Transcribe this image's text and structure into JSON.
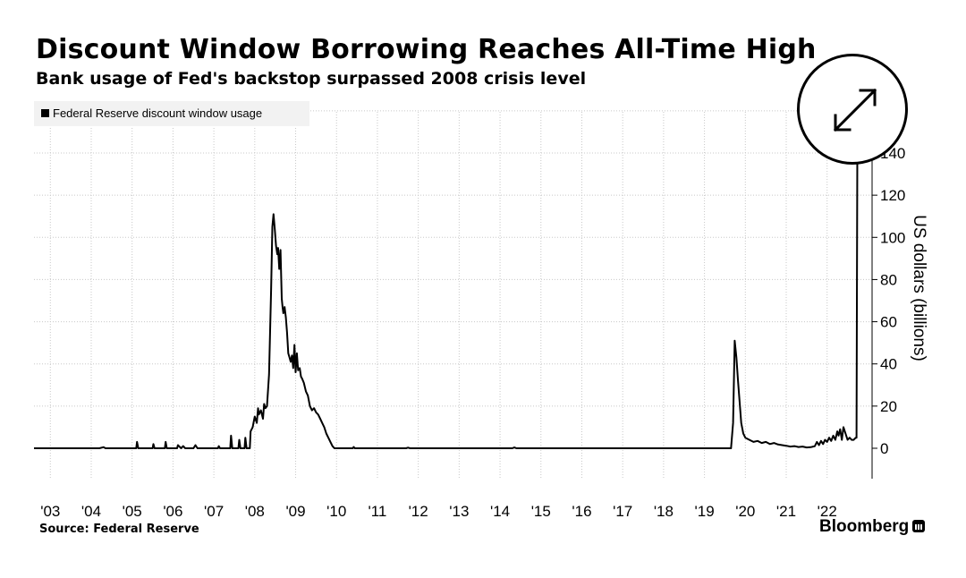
{
  "header": {
    "title": "Discount Window Borrowing Reaches All-Time High",
    "subtitle": "Bank usage of Fed's backstop surpassed 2008 crisis level"
  },
  "legend": {
    "label": "Federal Reserve discount window usage"
  },
  "footer": {
    "source": "Source: Federal Reserve",
    "brand": "Bloomberg"
  },
  "controls": {
    "expand_icon": "expand-arrows-icon"
  },
  "colors": {
    "line": "#000000",
    "grid": "#c8c8c8",
    "legend_bg": "#f2f2f2"
  },
  "chart_data": {
    "type": "line",
    "title": "Discount Window Borrowing Reaches All-Time High",
    "subtitle": "Bank usage of Fed's backstop surpassed 2008 crisis level",
    "ylabel": "US dollars (billions)",
    "ylim": [
      -15,
      140
    ],
    "xlim": [
      2002.6,
      2023.1
    ],
    "y_ticks": [
      0,
      20,
      40,
      60,
      80,
      100,
      120,
      140
    ],
    "y_tick_labels": [
      "0",
      "20",
      "40",
      "60",
      "80",
      "100",
      "120",
      "140"
    ],
    "x_ticks": [
      2003,
      2004,
      2005,
      2006,
      2007,
      2008,
      2009,
      2010,
      2011,
      2012,
      2013,
      2014,
      2015,
      2016,
      2017,
      2018,
      2019,
      2020,
      2021,
      2022
    ],
    "x_tick_labels": [
      "'03",
      "'04",
      "'05",
      "'06",
      "'07",
      "'08",
      "'09",
      "'10",
      "'11",
      "'12",
      "'13",
      "'14",
      "'15",
      "'16",
      "'17",
      "'18",
      "'19",
      "'20",
      "'21",
      "'22"
    ],
    "grid": true,
    "legend_position": "top-left",
    "series": [
      {
        "name": "Federal Reserve discount window usage",
        "points": [
          [
            2002.6,
            0
          ],
          [
            2004.2,
            0
          ],
          [
            2004.3,
            0.5
          ],
          [
            2004.35,
            0
          ],
          [
            2005.1,
            0
          ],
          [
            2005.12,
            3
          ],
          [
            2005.15,
            0
          ],
          [
            2005.5,
            0
          ],
          [
            2005.52,
            2
          ],
          [
            2005.55,
            0
          ],
          [
            2005.8,
            0
          ],
          [
            2005.82,
            3
          ],
          [
            2005.85,
            0
          ],
          [
            2006.1,
            0
          ],
          [
            2006.12,
            1.5
          ],
          [
            2006.2,
            0
          ],
          [
            2006.25,
            1
          ],
          [
            2006.3,
            0
          ],
          [
            2006.5,
            0
          ],
          [
            2006.55,
            1.5
          ],
          [
            2006.6,
            0
          ],
          [
            2007.1,
            0
          ],
          [
            2007.12,
            1
          ],
          [
            2007.15,
            0
          ],
          [
            2007.4,
            0
          ],
          [
            2007.42,
            6
          ],
          [
            2007.45,
            0
          ],
          [
            2007.6,
            0
          ],
          [
            2007.62,
            4
          ],
          [
            2007.65,
            0
          ],
          [
            2007.75,
            0
          ],
          [
            2007.77,
            5
          ],
          [
            2007.8,
            0
          ],
          [
            2007.88,
            0
          ],
          [
            2007.9,
            8
          ],
          [
            2007.95,
            10
          ],
          [
            2008.0,
            15
          ],
          [
            2008.05,
            12
          ],
          [
            2008.08,
            19
          ],
          [
            2008.1,
            16
          ],
          [
            2008.15,
            18
          ],
          [
            2008.2,
            14
          ],
          [
            2008.23,
            21
          ],
          [
            2008.26,
            19
          ],
          [
            2008.3,
            20
          ],
          [
            2008.35,
            35
          ],
          [
            2008.4,
            75
          ],
          [
            2008.43,
            105
          ],
          [
            2008.46,
            111
          ],
          [
            2008.49,
            104
          ],
          [
            2008.52,
            96
          ],
          [
            2008.55,
            92
          ],
          [
            2008.57,
            95
          ],
          [
            2008.6,
            85
          ],
          [
            2008.63,
            94
          ],
          [
            2008.66,
            71
          ],
          [
            2008.68,
            67
          ],
          [
            2008.7,
            64
          ],
          [
            2008.73,
            67
          ],
          [
            2008.76,
            62
          ],
          [
            2008.79,
            55
          ],
          [
            2008.82,
            45
          ],
          [
            2008.85,
            43
          ],
          [
            2008.88,
            41
          ],
          [
            2008.91,
            44
          ],
          [
            2008.94,
            38
          ],
          [
            2008.97,
            49
          ],
          [
            2009.0,
            36
          ],
          [
            2009.03,
            45
          ],
          [
            2009.06,
            37
          ],
          [
            2009.1,
            38
          ],
          [
            2009.13,
            34
          ],
          [
            2009.16,
            33
          ],
          [
            2009.2,
            31
          ],
          [
            2009.25,
            27
          ],
          [
            2009.3,
            25
          ],
          [
            2009.35,
            20
          ],
          [
            2009.4,
            18
          ],
          [
            2009.45,
            19
          ],
          [
            2009.5,
            17
          ],
          [
            2009.55,
            16
          ],
          [
            2009.6,
            14
          ],
          [
            2009.65,
            12
          ],
          [
            2009.7,
            10
          ],
          [
            2009.75,
            7
          ],
          [
            2009.8,
            5
          ],
          [
            2009.85,
            3
          ],
          [
            2009.9,
            1
          ],
          [
            2009.95,
            0
          ],
          [
            2010.4,
            0
          ],
          [
            2010.42,
            0.6
          ],
          [
            2010.45,
            0
          ],
          [
            2011.7,
            0
          ],
          [
            2011.75,
            0.3
          ],
          [
            2011.8,
            0
          ],
          [
            2014.3,
            0
          ],
          [
            2014.35,
            0.4
          ],
          [
            2014.4,
            0
          ],
          [
            2019.65,
            0
          ],
          [
            2019.7,
            12
          ],
          [
            2019.74,
            51
          ],
          [
            2019.78,
            43
          ],
          [
            2019.82,
            32
          ],
          [
            2019.86,
            22
          ],
          [
            2019.9,
            12
          ],
          [
            2019.95,
            7
          ],
          [
            2020.0,
            5
          ],
          [
            2020.1,
            4
          ],
          [
            2020.2,
            3
          ],
          [
            2020.3,
            3.5
          ],
          [
            2020.4,
            2.5
          ],
          [
            2020.5,
            3
          ],
          [
            2020.6,
            2
          ],
          [
            2020.7,
            2.5
          ],
          [
            2020.8,
            1.8
          ],
          [
            2020.9,
            1.5
          ],
          [
            2021.0,
            1.2
          ],
          [
            2021.1,
            0.8
          ],
          [
            2021.2,
            1
          ],
          [
            2021.3,
            0.6
          ],
          [
            2021.4,
            0.8
          ],
          [
            2021.5,
            0.4
          ],
          [
            2021.6,
            0.5
          ],
          [
            2021.7,
            1
          ],
          [
            2021.75,
            3
          ],
          [
            2021.8,
            1.5
          ],
          [
            2021.85,
            3.5
          ],
          [
            2021.9,
            2
          ],
          [
            2021.95,
            4
          ],
          [
            2022.0,
            3
          ],
          [
            2022.05,
            5
          ],
          [
            2022.1,
            3.5
          ],
          [
            2022.15,
            6
          ],
          [
            2022.2,
            4
          ],
          [
            2022.25,
            8
          ],
          [
            2022.28,
            6
          ],
          [
            2022.32,
            9
          ],
          [
            2022.36,
            4
          ],
          [
            2022.4,
            10
          ],
          [
            2022.45,
            7
          ],
          [
            2022.5,
            4
          ],
          [
            2022.55,
            5
          ],
          [
            2022.6,
            4
          ],
          [
            2022.65,
            4
          ],
          [
            2022.7,
            5
          ],
          [
            2022.72,
            5
          ],
          [
            2022.74,
            140
          ]
        ]
      }
    ]
  }
}
